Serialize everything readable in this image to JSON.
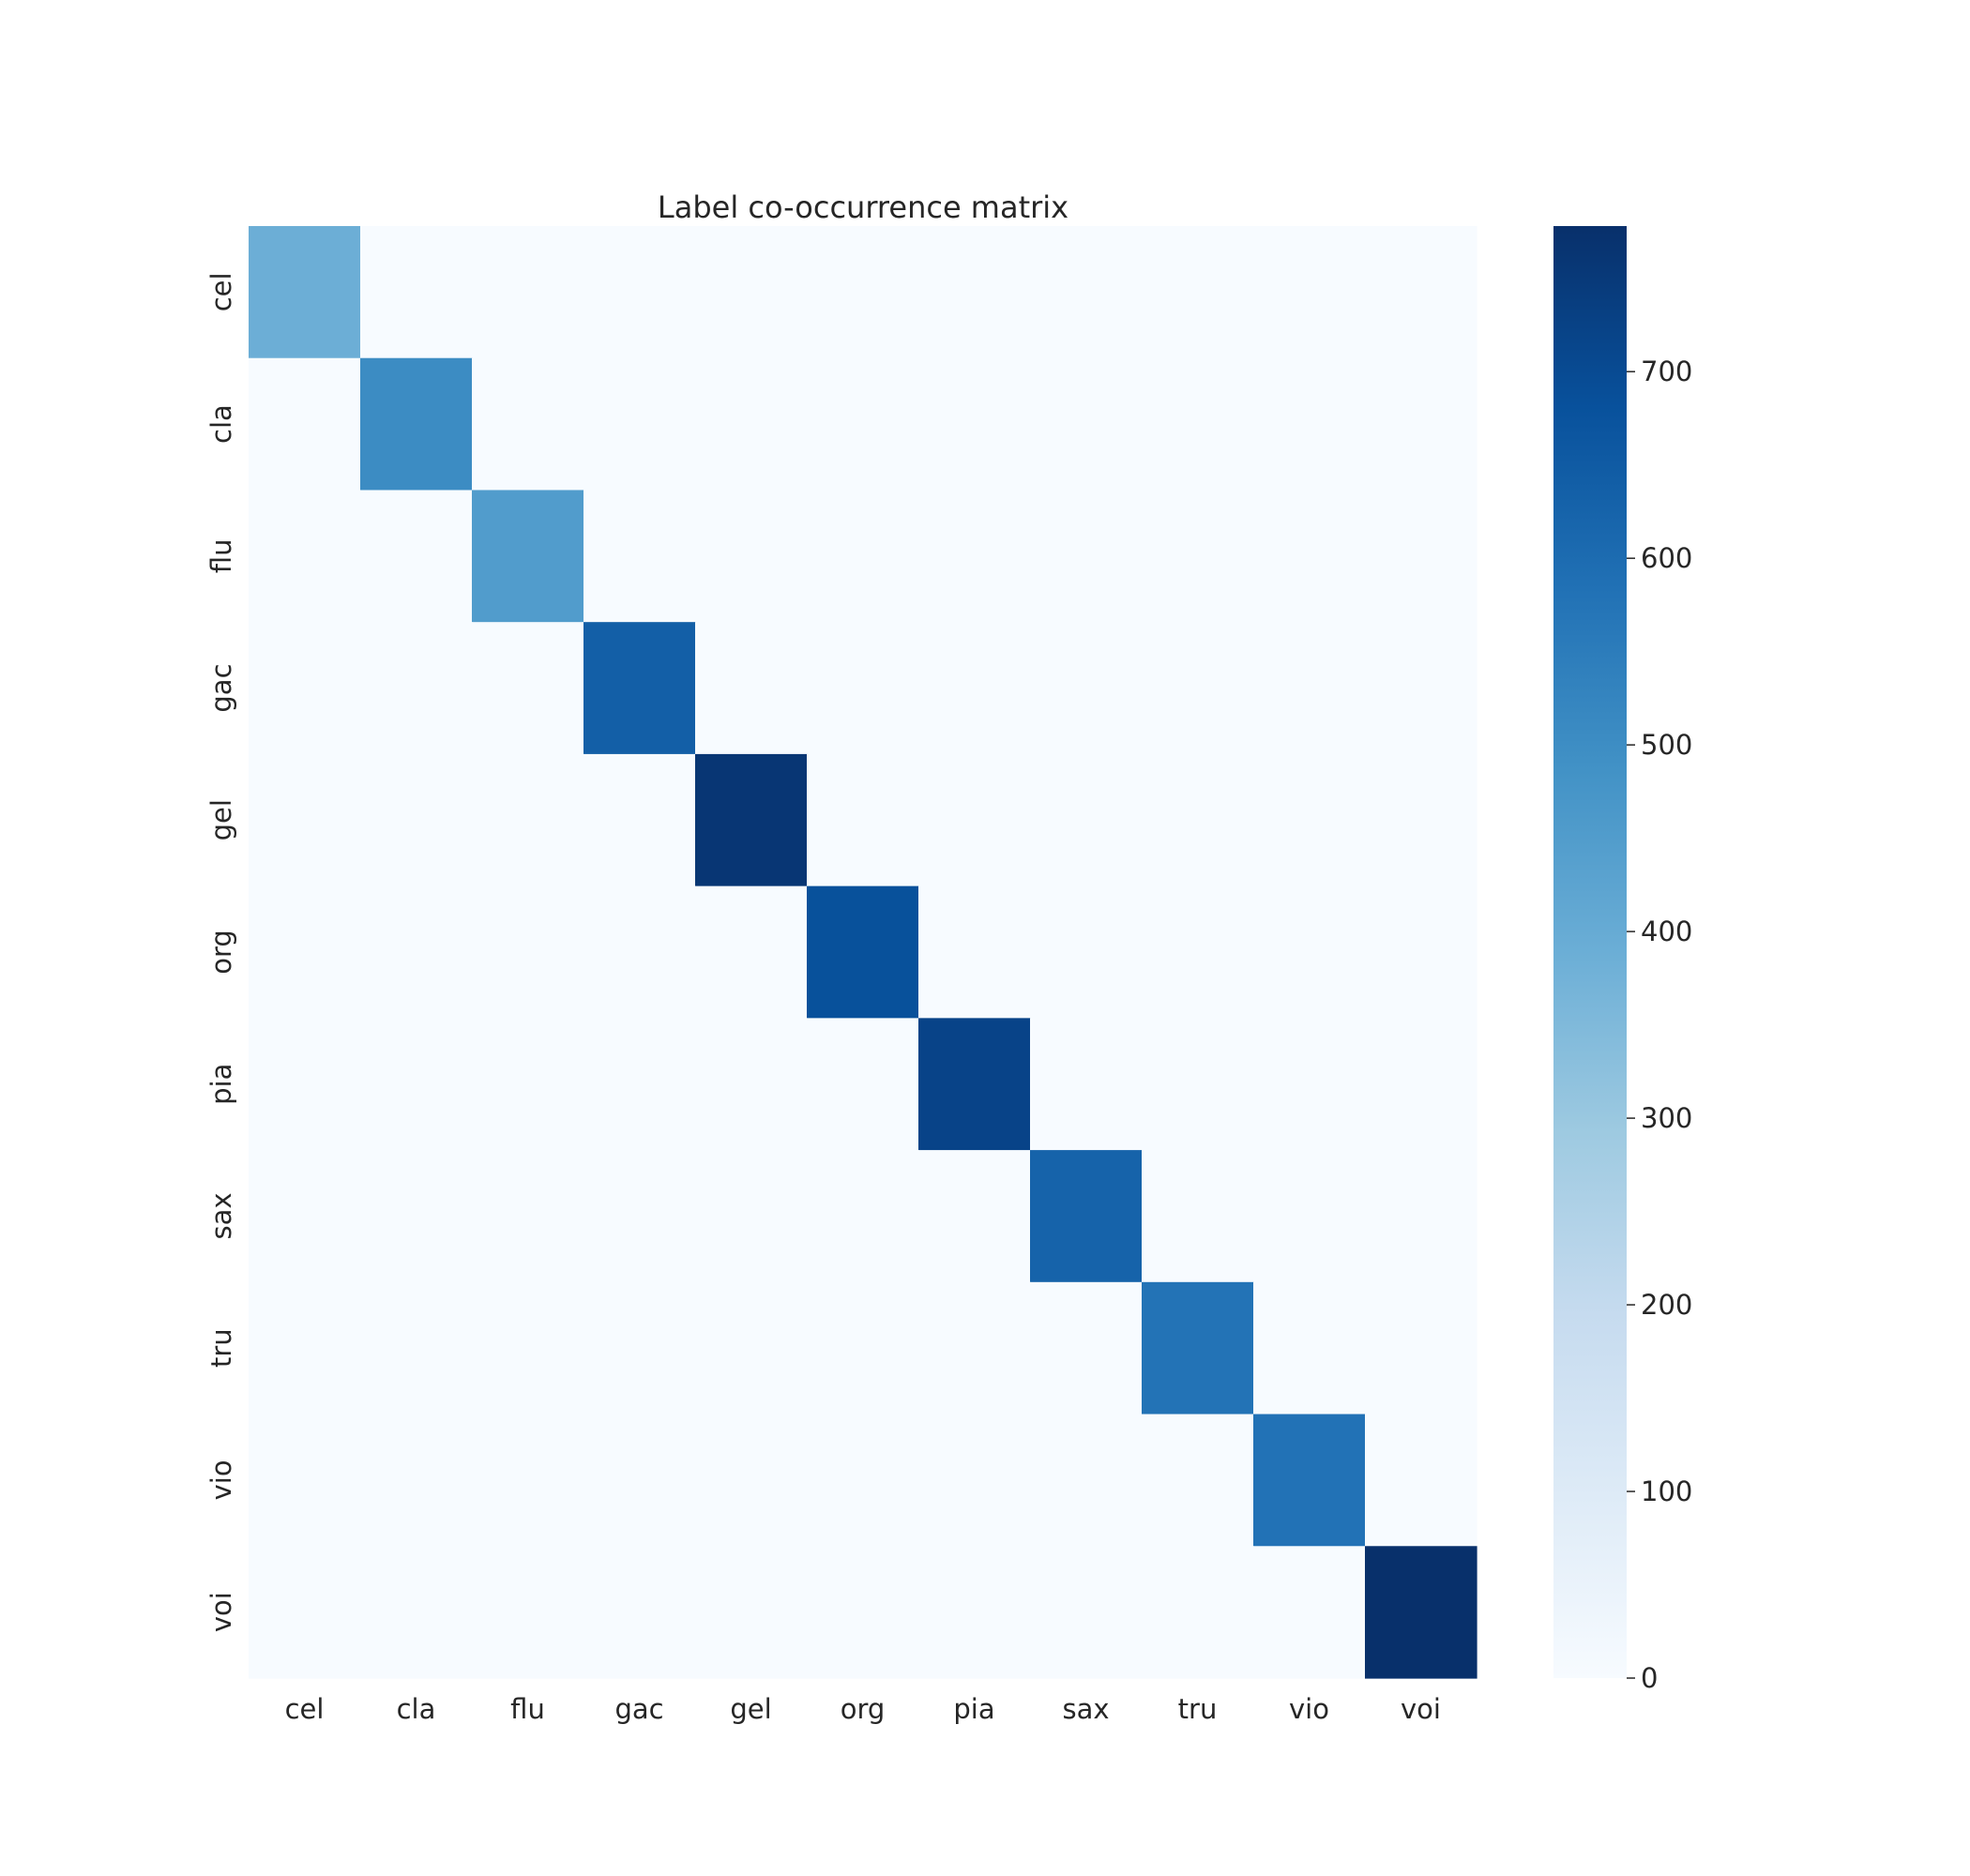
{
  "chart_data": {
    "type": "heatmap",
    "title": "Label co-occurrence matrix",
    "xlabel": "",
    "ylabel": "",
    "x_labels": [
      "cel",
      "cla",
      "flu",
      "gac",
      "gel",
      "org",
      "pia",
      "sax",
      "tru",
      "vio",
      "voi"
    ],
    "y_labels": [
      "cel",
      "cla",
      "flu",
      "gac",
      "gel",
      "org",
      "pia",
      "sax",
      "tru",
      "vio",
      "voi"
    ],
    "values": [
      [
        388,
        0,
        0,
        0,
        0,
        0,
        0,
        0,
        0,
        0,
        0
      ],
      [
        0,
        505,
        0,
        0,
        0,
        0,
        0,
        0,
        0,
        0,
        0
      ],
      [
        0,
        0,
        451,
        0,
        0,
        0,
        0,
        0,
        0,
        0,
        0
      ],
      [
        0,
        0,
        0,
        637,
        0,
        0,
        0,
        0,
        0,
        0,
        0
      ],
      [
        0,
        0,
        0,
        0,
        760,
        0,
        0,
        0,
        0,
        0,
        0
      ],
      [
        0,
        0,
        0,
        0,
        0,
        682,
        0,
        0,
        0,
        0,
        0
      ],
      [
        0,
        0,
        0,
        0,
        0,
        0,
        721,
        0,
        0,
        0,
        0
      ],
      [
        0,
        0,
        0,
        0,
        0,
        0,
        0,
        626,
        0,
        0,
        0
      ],
      [
        0,
        0,
        0,
        0,
        0,
        0,
        0,
        0,
        577,
        0,
        0
      ],
      [
        0,
        0,
        0,
        0,
        0,
        0,
        0,
        0,
        0,
        580,
        0
      ],
      [
        0,
        0,
        0,
        0,
        0,
        0,
        0,
        0,
        0,
        0,
        778
      ]
    ],
    "colormap": "Blues",
    "colorbar": {
      "vmin": 0,
      "vmax": 778,
      "ticks": [
        0,
        100,
        200,
        300,
        400,
        500,
        600,
        700
      ],
      "tick_labels": [
        "0",
        "100",
        "200",
        "300",
        "400",
        "500",
        "600",
        "700"
      ]
    },
    "grid": false,
    "legend": "colorbar right"
  }
}
